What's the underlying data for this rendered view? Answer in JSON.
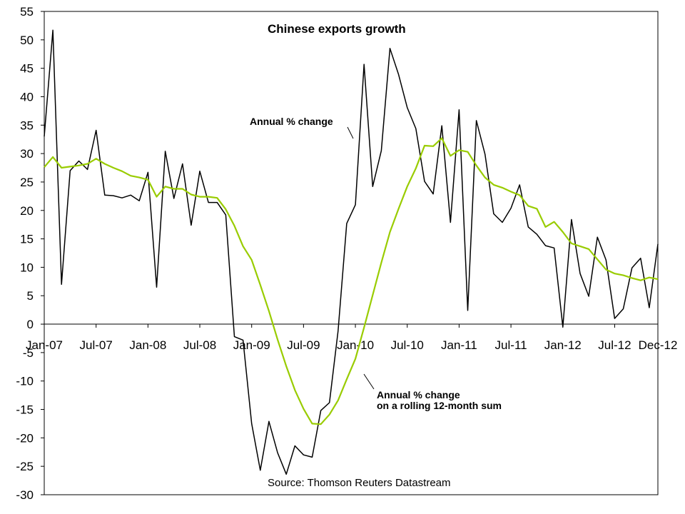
{
  "chart_data": {
    "type": "line",
    "title": "Chinese exports growth",
    "source": "Source: Thomson Reuters Datastream",
    "xlabel": "",
    "ylabel": "",
    "x_ticks": [
      "Jan-07",
      "Jul-07",
      "Jan-08",
      "Jul-08",
      "Jan-09",
      "Jul-09",
      "Jan-10",
      "Jul-10",
      "Jan-11",
      "Jul-11",
      "Jan-12",
      "Jul-12",
      "Dec-12"
    ],
    "ylim": [
      -30,
      55
    ],
    "y_ticks": [
      -30,
      -25,
      -20,
      -15,
      -10,
      -5,
      0,
      5,
      10,
      15,
      20,
      25,
      30,
      35,
      40,
      45,
      50,
      55
    ],
    "grid": false,
    "legend": "none",
    "annotations": [
      {
        "lines": [
          "Annual % change"
        ],
        "series": "monthly"
      },
      {
        "lines": [
          "Annual % change",
          "on a rolling 12-month sum"
        ],
        "series": "rolling"
      }
    ],
    "x_start": "Jan-07",
    "series": [
      {
        "key": "monthly",
        "color": "#000000",
        "values": [
          33,
          51.7,
          7,
          27,
          28.7,
          27.2,
          34.1,
          22.7,
          22.6,
          22.2,
          22.7,
          21.7,
          26.7,
          6.5,
          30.4,
          22.1,
          28.2,
          17.4,
          26.9,
          21.4,
          21.4,
          19.2,
          -2.2,
          -2.8,
          -17.5,
          -25.7,
          -17.1,
          -22.6,
          -26.4,
          -21.4,
          -23,
          -23.4,
          -15.2,
          -13.8,
          -1.2,
          17.7,
          21,
          45.7,
          24.2,
          30.5,
          48.5,
          43.9,
          38.1,
          34.4,
          25.1,
          22.9,
          34.9,
          17.9,
          37.7,
          2.4,
          35.8,
          29.9,
          19.4,
          17.9,
          20.4,
          24.5,
          17.1,
          15.8,
          13.8,
          13.4,
          -0.5,
          18.4,
          8.9,
          4.9,
          15.3,
          11.3,
          1,
          2.7,
          9.9,
          11.6,
          2.9,
          14.1
        ]
      },
      {
        "key": "rolling",
        "color": "#99cc00",
        "values": [
          27.6,
          29.4,
          27.5,
          27.7,
          27.9,
          28.2,
          29.1,
          28.2,
          27.5,
          26.9,
          26.1,
          25.8,
          25.4,
          22.4,
          24.2,
          23.8,
          23.8,
          22.8,
          22.4,
          22.4,
          22.2,
          20.2,
          17.3,
          13.7,
          11.3,
          6.9,
          2.3,
          -2.7,
          -7.4,
          -11.6,
          -14.9,
          -17.5,
          -17.6,
          -15.9,
          -13.4,
          -9.7,
          -6.1,
          -0.6,
          5.1,
          10.8,
          16.2,
          20.3,
          24.2,
          27.4,
          31.4,
          31.3,
          32.7,
          29.6,
          30.6,
          30.3,
          27.9,
          25.8,
          24.5,
          24,
          23.3,
          22.7,
          20.8,
          20.3,
          17.1,
          18,
          16.2,
          14.2,
          13.7,
          13.2,
          11.4,
          9.6,
          8.9,
          8.6,
          8.1,
          7.7,
          8.2,
          7.9
        ]
      }
    ]
  }
}
